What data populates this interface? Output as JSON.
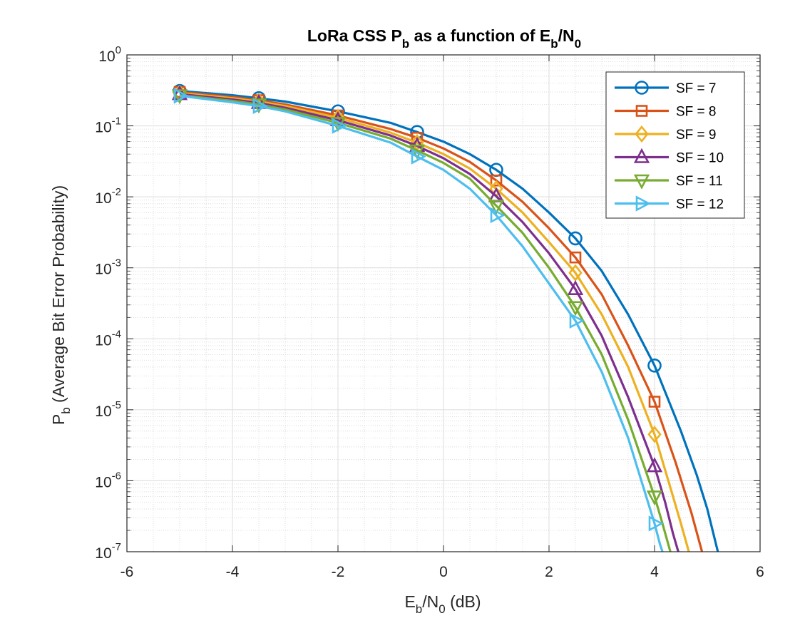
{
  "chart_data": {
    "type": "line",
    "title": {
      "prefix": "LoRa CSS P",
      "sub1": "b",
      "middle": " as a function of E",
      "sub2": "b",
      "suffix": "/N",
      "sub3": "0"
    },
    "xlabel": {
      "a": "E",
      "a_sub": "b",
      "b": "/N",
      "b_sub": "0",
      "c": " (dB)"
    },
    "ylabel": {
      "a": "P",
      "a_sub": "b",
      "b": " (Average Bit Error Probability)"
    },
    "x_scale": "linear",
    "y_scale": "log",
    "xlim": [
      -6,
      6
    ],
    "ylim": [
      1e-07,
      1
    ],
    "x_ticks": [
      -6,
      -4,
      -2,
      0,
      2,
      4,
      6
    ],
    "x_tick_labels": [
      "-6",
      "-4",
      "-2",
      "0",
      "2",
      "4",
      "6"
    ],
    "y_ticks": [
      {
        "value": 1,
        "base": "10",
        "exp": "0"
      },
      {
        "value": 0.1,
        "base": "10",
        "exp": "-1"
      },
      {
        "value": 0.01,
        "base": "10",
        "exp": "-2"
      },
      {
        "value": 0.001,
        "base": "10",
        "exp": "-3"
      },
      {
        "value": 0.0001,
        "base": "10",
        "exp": "-4"
      },
      {
        "value": 1e-05,
        "base": "10",
        "exp": "-5"
      },
      {
        "value": 1e-06,
        "base": "10",
        "exp": "-6"
      },
      {
        "value": 1e-07,
        "base": "10",
        "exp": "-7"
      }
    ],
    "grid": true,
    "minor_grid": true,
    "legend_position": "top-right",
    "series": [
      {
        "name": "SF = 7",
        "color": "#0072BD",
        "marker": "circle",
        "line_x": [
          -5,
          -4,
          -3.5,
          -3,
          -2,
          -1,
          -0.5,
          0,
          0.5,
          1,
          1.5,
          2,
          2.5,
          3,
          3.5,
          4,
          4.5,
          4.8,
          5.0,
          5.2
        ],
        "line_y": [
          0.31,
          0.27,
          0.245,
          0.22,
          0.16,
          0.11,
          0.082,
          0.06,
          0.04,
          0.024,
          0.013,
          0.006,
          0.0026,
          0.0009,
          0.00022,
          4.2e-05,
          5e-06,
          1.2e-06,
          4e-07,
          1e-07
        ],
        "marker_x": [
          -5,
          -3.5,
          -2,
          -0.5,
          1,
          2.5,
          4
        ],
        "marker_y": [
          0.31,
          0.245,
          0.16,
          0.082,
          0.024,
          0.0026,
          4.2e-05
        ]
      },
      {
        "name": "SF = 8",
        "color": "#D95319",
        "marker": "square",
        "line_x": [
          -5,
          -4,
          -3.5,
          -3,
          -2,
          -1,
          -0.5,
          0,
          0.5,
          1,
          1.5,
          2,
          2.5,
          3,
          3.5,
          4,
          4.4,
          4.7,
          4.9
        ],
        "line_y": [
          0.3,
          0.255,
          0.23,
          0.2,
          0.14,
          0.09,
          0.068,
          0.048,
          0.031,
          0.017,
          0.0085,
          0.0036,
          0.0014,
          0.00042,
          8e-05,
          1.3e-05,
          1.8e-06,
          3.5e-07,
          1e-07
        ],
        "marker_x": [
          -5,
          -3.5,
          -2,
          -0.5,
          1,
          2.5,
          4
        ],
        "marker_y": [
          0.3,
          0.23,
          0.14,
          0.068,
          0.017,
          0.0014,
          1.3e-05
        ]
      },
      {
        "name": "SF = 9",
        "color": "#EDB120",
        "marker": "diamond",
        "line_x": [
          -5,
          -4,
          -3.5,
          -3,
          -2,
          -1,
          -0.5,
          0,
          0.5,
          1,
          1.5,
          2,
          2.5,
          3,
          3.5,
          4,
          4.3,
          4.5,
          4.65
        ],
        "line_y": [
          0.29,
          0.245,
          0.22,
          0.19,
          0.13,
          0.08,
          0.058,
          0.04,
          0.025,
          0.013,
          0.006,
          0.0023,
          0.00085,
          0.00022,
          4e-05,
          4.5e-06,
          8e-07,
          2.5e-07,
          1e-07
        ],
        "marker_x": [
          -5,
          -3.5,
          -2,
          -0.5,
          1,
          2.5,
          4
        ],
        "marker_y": [
          0.29,
          0.22,
          0.13,
          0.058,
          0.013,
          0.00085,
          4.5e-06
        ]
      },
      {
        "name": "SF = 10",
        "color": "#7E2F8E",
        "marker": "triangle-up",
        "line_x": [
          -5,
          -4,
          -3.5,
          -3,
          -2,
          -1,
          -0.5,
          0,
          0.5,
          1,
          1.5,
          2,
          2.5,
          3,
          3.5,
          4,
          4.2,
          4.35,
          4.45
        ],
        "line_y": [
          0.28,
          0.235,
          0.21,
          0.18,
          0.12,
          0.073,
          0.052,
          0.035,
          0.021,
          0.0102,
          0.0044,
          0.0016,
          0.0005,
          0.00011,
          1.5e-05,
          1.6e-06,
          5e-07,
          1.8e-07,
          1e-07
        ],
        "marker_x": [
          -5,
          -3.5,
          -2,
          -0.5,
          1,
          2.5,
          4
        ],
        "marker_y": [
          0.28,
          0.21,
          0.12,
          0.052,
          0.0102,
          0.0005,
          1.6e-06
        ]
      },
      {
        "name": "SF = 11",
        "color": "#77AC30",
        "marker": "triangle-down",
        "line_x": [
          -5,
          -4,
          -3.5,
          -3,
          -2,
          -1,
          -0.5,
          0,
          0.5,
          1,
          1.5,
          2,
          2.5,
          3,
          3.5,
          4,
          4.15,
          4.3
        ],
        "line_y": [
          0.27,
          0.225,
          0.2,
          0.17,
          0.11,
          0.066,
          0.045,
          0.03,
          0.018,
          0.0075,
          0.0031,
          0.001,
          0.00028,
          6e-05,
          7.2e-06,
          6e-07,
          2.5e-07,
          1e-07
        ],
        "marker_x": [
          -5,
          -3.5,
          -2,
          -0.5,
          1,
          2.5,
          4
        ],
        "marker_y": [
          0.27,
          0.2,
          0.11,
          0.045,
          0.0075,
          0.00028,
          6e-07
        ]
      },
      {
        "name": "SF = 12",
        "color": "#4DBEEE",
        "marker": "triangle-right",
        "line_x": [
          -5,
          -4,
          -3.5,
          -3,
          -2,
          -1,
          -0.5,
          0,
          0.5,
          1,
          1.5,
          2,
          2.5,
          3,
          3.5,
          4,
          4.1,
          4.15
        ],
        "line_y": [
          0.265,
          0.215,
          0.19,
          0.16,
          0.1,
          0.058,
          0.037,
          0.024,
          0.013,
          0.0055,
          0.002,
          0.0006,
          0.00018,
          3.4e-05,
          4e-06,
          2.5e-07,
          1.3e-07,
          1e-07
        ],
        "marker_x": [
          -5,
          -3.5,
          -2,
          -0.5,
          1,
          2.5,
          4
        ],
        "marker_y": [
          0.265,
          0.19,
          0.1,
          0.037,
          0.0055,
          0.00018,
          2.5e-07
        ]
      }
    ]
  }
}
